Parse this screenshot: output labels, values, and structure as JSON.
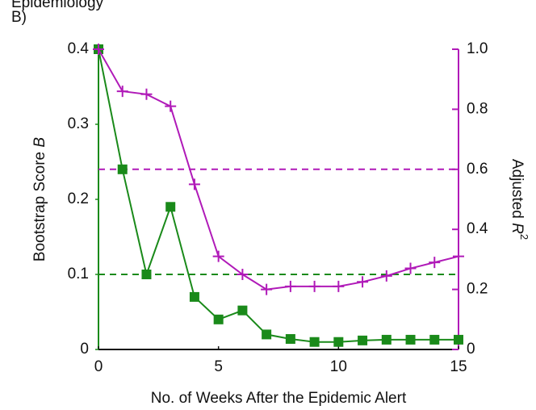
{
  "chart_data": {
    "type": "line",
    "title": "Epidemiology",
    "panel_label": "B)",
    "xlabel": "No. of Weeks After the Epidemic Alert",
    "ylabel": [
      "Bootstrap Score ",
      "B"
    ],
    "y2label": [
      "Adjusted ",
      "R",
      "2"
    ],
    "x": [
      0,
      1,
      2,
      3,
      4,
      5,
      6,
      7,
      8,
      9,
      10,
      11,
      12,
      13,
      14,
      15
    ],
    "series": [
      {
        "name": "Bootstrap Score",
        "color": "#1a8a1a",
        "marker": "square",
        "values": [
          0.4,
          0.24,
          0.1,
          0.19,
          0.07,
          0.04,
          0.052,
          0.02,
          0.014,
          0.01,
          0.01,
          0.012,
          0.013,
          0.013,
          0.013,
          0.013
        ]
      },
      {
        "name": "Adjusted R2",
        "color": "#b01ab8",
        "marker": "plus",
        "axis": "y2",
        "values": [
          1.0,
          0.86,
          0.85,
          0.81,
          0.55,
          0.31,
          0.25,
          0.2,
          0.21,
          0.21,
          0.21,
          0.225,
          0.245,
          0.27,
          0.29,
          0.31
        ]
      }
    ],
    "hlines": [
      {
        "value": 0.1,
        "color": "#1a8a1a"
      },
      {
        "value": 0.6,
        "color": "#b01ab8",
        "axis": "y2"
      }
    ],
    "xlim": [
      0,
      15
    ],
    "xticks": [
      0,
      5,
      10,
      15
    ],
    "ylim": [
      0,
      0.4
    ],
    "yticks": [
      0,
      0.1,
      0.2,
      0.3,
      0.4
    ],
    "y2lim": [
      0,
      1
    ],
    "y2ticks": [
      0,
      0.2,
      0.4,
      0.6,
      0.8,
      {
        "value": 1,
        "label": "1.0"
      }
    ]
  }
}
